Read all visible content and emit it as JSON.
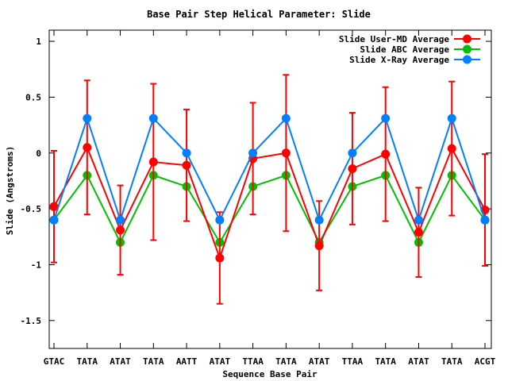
{
  "chart_data": {
    "type": "line",
    "title": "Base Pair Step Helical Parameter: Slide",
    "xlabel": "Sequence Base Pair",
    "ylabel": "Slide (Angstroms)",
    "ylim": [
      -1.75,
      1.1
    ],
    "yticks": [
      1,
      0.5,
      0,
      -0.5,
      -1,
      -1.5
    ],
    "ytick_labels": [
      "1",
      "0.5",
      "0",
      "-0.5",
      "-1",
      "-1.5"
    ],
    "categories": [
      "GTAC",
      "TATA",
      "ATAT",
      "TATA",
      "AATT",
      "ATAT",
      "TTAA",
      "TATA",
      "ATAT",
      "TTAA",
      "TATA",
      "ATAT",
      "TATA",
      "ACGT"
    ],
    "legend_position": "top-right",
    "series": [
      {
        "name": "Slide User-MD Average",
        "color": "#ff0000",
        "values": [
          -0.48,
          0.05,
          -0.69,
          -0.08,
          -0.11,
          -0.94,
          -0.05,
          0.0,
          -0.83,
          -0.14,
          -0.01,
          -0.71,
          0.04,
          -0.51
        ],
        "error": [
          0.5,
          0.6,
          0.4,
          0.7,
          0.5,
          0.41,
          0.5,
          0.7,
          0.4,
          0.5,
          0.6,
          0.4,
          0.6,
          0.5
        ]
      },
      {
        "name": "Slide ABC Average",
        "color": "#00c000",
        "values": [
          -0.6,
          -0.2,
          -0.8,
          -0.2,
          -0.3,
          -0.8,
          -0.3,
          -0.2,
          -0.8,
          -0.3,
          -0.2,
          -0.8,
          -0.2,
          -0.6
        ]
      },
      {
        "name": "Slide X-Ray Average",
        "color": "#0080ff",
        "values": [
          -0.6,
          0.31,
          -0.6,
          0.31,
          0.0,
          -0.6,
          0.0,
          0.31,
          -0.6,
          0.0,
          0.31,
          -0.6,
          0.31,
          -0.6
        ]
      }
    ]
  }
}
